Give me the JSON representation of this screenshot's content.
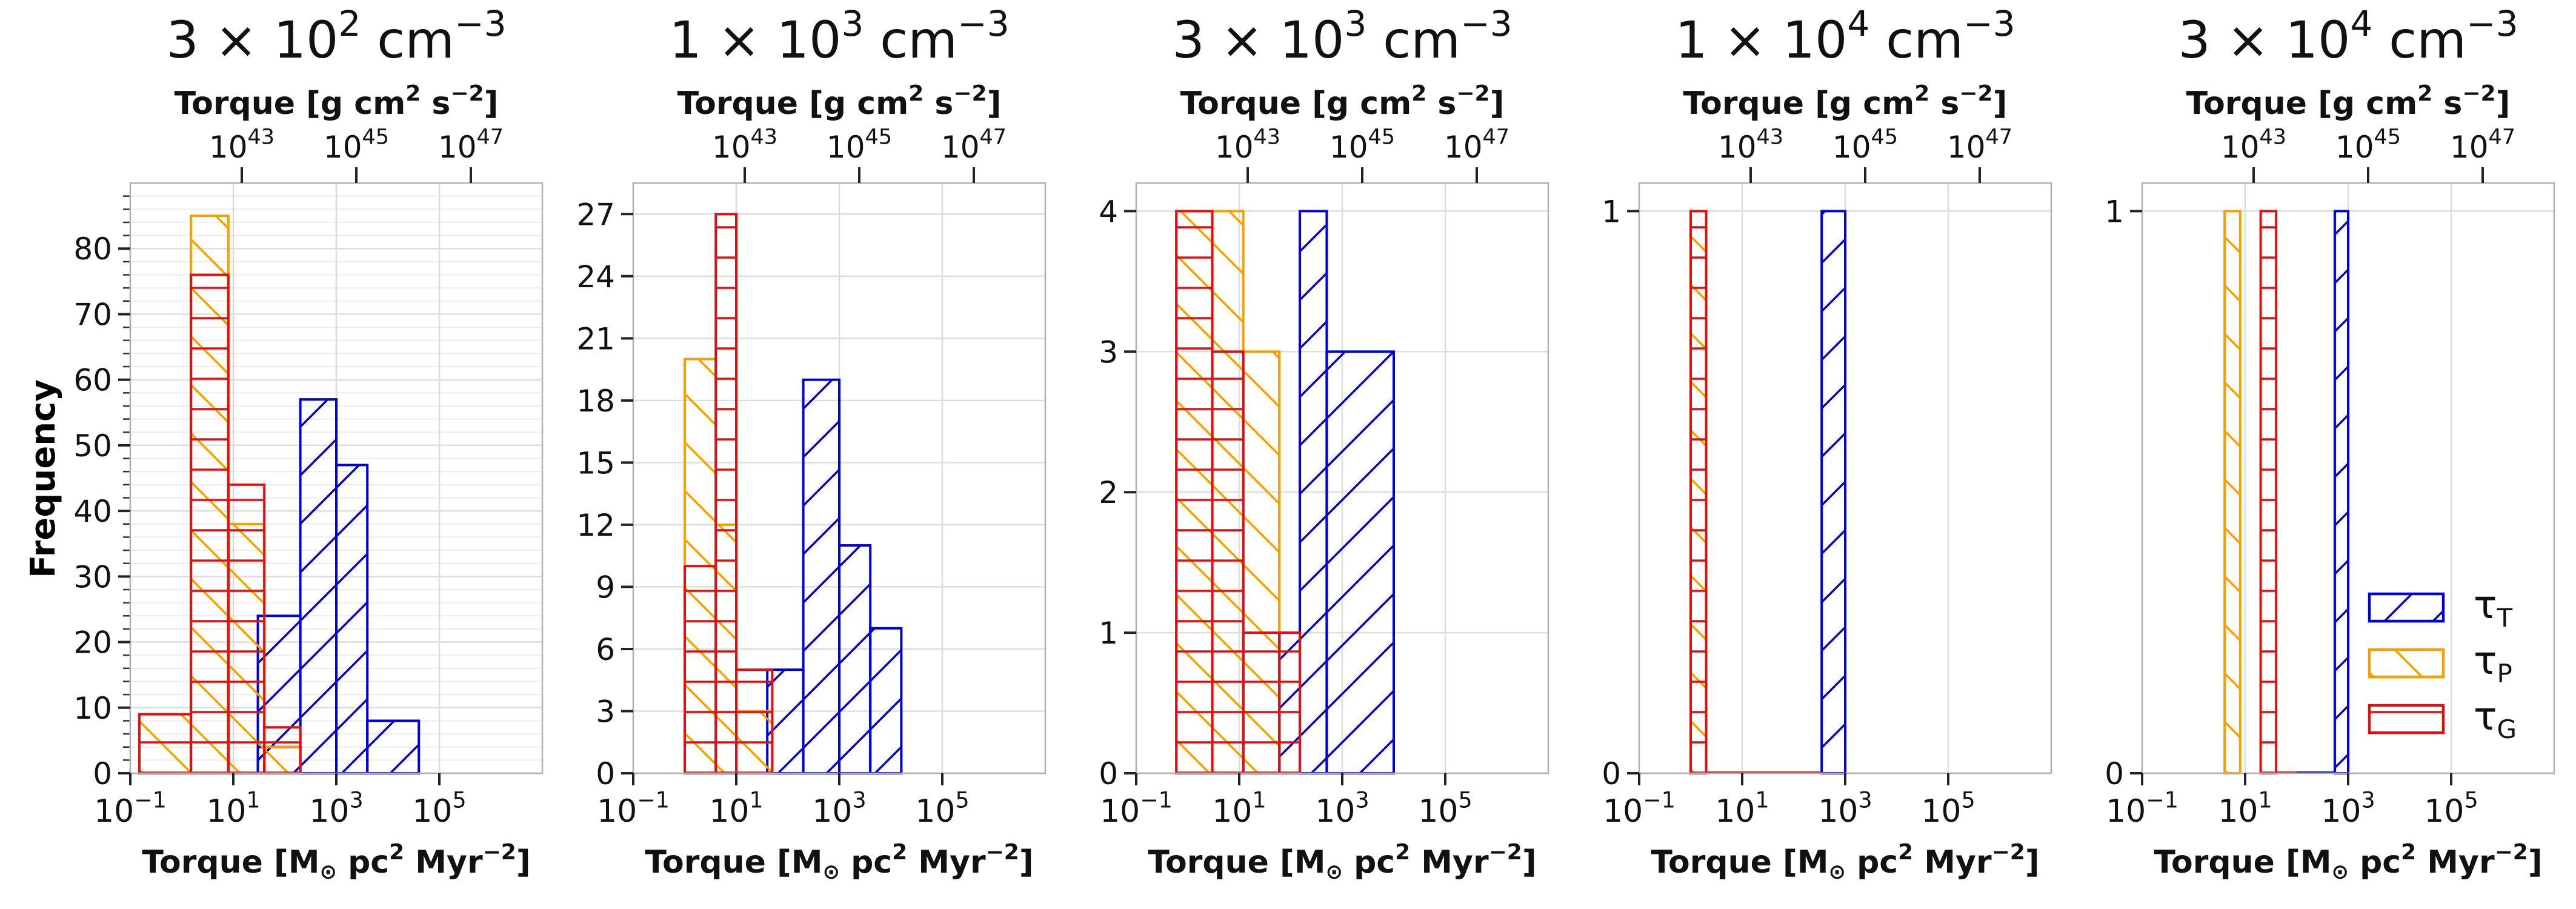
{
  "legend": {
    "position": "lower-right of last panel",
    "entries": [
      {
        "key": "T",
        "label": "τ",
        "sub": "T",
        "color": "#0000dd",
        "hatch": "diag-up"
      },
      {
        "key": "P",
        "label": "τ",
        "sub": "P",
        "color": "#f5a000",
        "hatch": "diag-down"
      },
      {
        "key": "G",
        "label": "τ",
        "sub": "G",
        "color": "#dd1111",
        "hatch": "horizontal"
      }
    ]
  },
  "y_axis_label": "Frequency",
  "chart_data": [
    {
      "type": "bar",
      "title": {
        "mant": "3",
        "exp": "2",
        "unit": "cm",
        "unit_exp": "−3"
      },
      "xlabel": {
        "pre": "Torque [M",
        "mid": " pc",
        "exp1": "2",
        "post": " Myr",
        "exp2": "−2",
        "end": "]"
      },
      "top_xlabel": {
        "pre": "Torque [g cm",
        "exp1": "2",
        "mid": " s",
        "exp2": "−2",
        "end": "]"
      },
      "xscale": "log",
      "xlim": [
        0.1,
        10000000
      ],
      "xticks": [
        "10^-1",
        "10^1",
        "10^3",
        "10^5"
      ],
      "top_xticks": [
        "10^43",
        "10^45",
        "10^47"
      ],
      "ylim": [
        0,
        90
      ],
      "yticks": [
        0,
        10,
        20,
        30,
        40,
        50,
        60,
        70,
        80
      ],
      "minor_y": true,
      "series": [
        {
          "name": "τ_T",
          "color": "#0000dd",
          "hatch": "diag-up",
          "bins": [
            [
              30,
              200,
              4
            ],
            [
              30,
              200,
              24
            ],
            [
              200,
              1000,
              57
            ],
            [
              1000,
              4000,
              47
            ],
            [
              4000,
              40000,
              8
            ]
          ]
        },
        {
          "name": "τ_P",
          "color": "#f5a000",
          "hatch": "diag-down",
          "bins": [
            [
              0.15,
              1.5,
              9
            ],
            [
              1.5,
              8,
              85
            ],
            [
              8,
              40,
              38
            ],
            [
              40,
              200,
              4
            ]
          ]
        },
        {
          "name": "τ_G",
          "color": "#dd1111",
          "hatch": "horizontal",
          "bins": [
            [
              0.15,
              1.5,
              9
            ],
            [
              1.5,
              8,
              76
            ],
            [
              8,
              40,
              44
            ],
            [
              40,
              200,
              7
            ]
          ]
        }
      ]
    },
    {
      "type": "bar",
      "title": {
        "mant": "1",
        "exp": "3",
        "unit": "cm",
        "unit_exp": "−3"
      },
      "xlabel": {
        "pre": "Torque [M",
        "mid": " pc",
        "exp1": "2",
        "post": " Myr",
        "exp2": "−2",
        "end": "]"
      },
      "top_xlabel": {
        "pre": "Torque [g cm",
        "exp1": "2",
        "mid": " s",
        "exp2": "−2",
        "end": "]"
      },
      "xscale": "log",
      "xlim": [
        0.1,
        10000000
      ],
      "xticks": [
        "10^-1",
        "10^1",
        "10^3",
        "10^5"
      ],
      "top_xticks": [
        "10^43",
        "10^45",
        "10^47"
      ],
      "ylim": [
        0,
        28.5
      ],
      "yticks": [
        0,
        3,
        6,
        9,
        12,
        15,
        18,
        21,
        24,
        27
      ],
      "minor_y": false,
      "series": [
        {
          "name": "τ_T",
          "color": "#0000dd",
          "hatch": "diag-up",
          "bins": [
            [
              40,
              200,
              5
            ],
            [
              200,
              1000,
              19
            ],
            [
              1000,
              4000,
              11
            ],
            [
              4000,
              16000,
              7
            ]
          ]
        },
        {
          "name": "τ_P",
          "color": "#f5a000",
          "hatch": "diag-down",
          "bins": [
            [
              1,
              4,
              20
            ],
            [
              4,
              10,
              12
            ],
            [
              10,
              50,
              3
            ]
          ]
        },
        {
          "name": "τ_G",
          "color": "#dd1111",
          "hatch": "horizontal",
          "bins": [
            [
              1,
              4,
              10
            ],
            [
              4,
              10,
              27
            ],
            [
              10,
              50,
              5
            ]
          ]
        }
      ]
    },
    {
      "type": "bar",
      "title": {
        "mant": "3",
        "exp": "3",
        "unit": "cm",
        "unit_exp": "−3"
      },
      "xlabel": {
        "pre": "Torque [M",
        "mid": " pc",
        "exp1": "2",
        "post": " Myr",
        "exp2": "−2",
        "end": "]"
      },
      "top_xlabel": {
        "pre": "Torque [g cm",
        "exp1": "2",
        "mid": " s",
        "exp2": "−2",
        "end": "]"
      },
      "xscale": "log",
      "xlim": [
        0.1,
        10000000
      ],
      "xticks": [
        "10^-1",
        "10^1",
        "10^3",
        "10^5"
      ],
      "top_xticks": [
        "10^43",
        "10^45",
        "10^47"
      ],
      "ylim": [
        0,
        4.2
      ],
      "yticks": [
        0,
        1,
        2,
        3,
        4
      ],
      "minor_y": false,
      "series": [
        {
          "name": "τ_T",
          "color": "#0000dd",
          "hatch": "diag-up",
          "bins": [
            [
              60,
              150,
              1
            ],
            [
              150,
              500,
              4
            ],
            [
              500,
              10000,
              3
            ]
          ]
        },
        {
          "name": "τ_P",
          "color": "#f5a000",
          "hatch": "diag-down",
          "bins": [
            [
              0.6,
              3,
              4
            ],
            [
              3,
              12,
              4
            ],
            [
              12,
              60,
              3
            ]
          ]
        },
        {
          "name": "τ_G",
          "color": "#dd1111",
          "hatch": "horizontal",
          "bins": [
            [
              0.6,
              3,
              4
            ],
            [
              3,
              12,
              3
            ],
            [
              12,
              60,
              1
            ],
            [
              60,
              150,
              1
            ]
          ]
        }
      ]
    },
    {
      "type": "bar",
      "title": {
        "mant": "1",
        "exp": "4",
        "unit": "cm",
        "unit_exp": "−3"
      },
      "xlabel": {
        "pre": "Torque [M",
        "mid": " pc",
        "exp1": "2",
        "post": " Myr",
        "exp2": "−2",
        "end": "]"
      },
      "top_xlabel": {
        "pre": "Torque [g cm",
        "exp1": "2",
        "mid": " s",
        "exp2": "−2",
        "end": "]"
      },
      "xscale": "log",
      "xlim": [
        0.1,
        10000000
      ],
      "xticks": [
        "10^-1",
        "10^1",
        "10^3",
        "10^5"
      ],
      "top_xticks": [
        "10^43",
        "10^45",
        "10^47"
      ],
      "ylim": [
        0,
        1.05
      ],
      "yticks": [
        0,
        1
      ],
      "minor_y": false,
      "series": [
        {
          "name": "τ_T",
          "color": "#0000dd",
          "hatch": "diag-up",
          "bins": [
            [
              2,
              350,
              0
            ],
            [
              350,
              1000,
              1
            ]
          ]
        },
        {
          "name": "τ_P",
          "color": "#f5a000",
          "hatch": "diag-down",
          "bins": [
            [
              1,
              2,
              1
            ]
          ]
        },
        {
          "name": "τ_G",
          "color": "#dd1111",
          "hatch": "horizontal",
          "bins": [
            [
              1,
              2,
              1
            ],
            [
              2,
              350,
              0
            ]
          ]
        }
      ]
    },
    {
      "type": "bar",
      "title": {
        "mant": "3",
        "exp": "4",
        "unit": "cm",
        "unit_exp": "−3"
      },
      "xlabel": {
        "pre": "Torque [M",
        "mid": " pc",
        "exp1": "2",
        "post": " Myr",
        "exp2": "−2",
        "end": "]"
      },
      "top_xlabel": {
        "pre": "Torque [g cm",
        "exp1": "2",
        "mid": " s",
        "exp2": "−2",
        "end": "]"
      },
      "xscale": "log",
      "xlim": [
        0.1,
        10000000
      ],
      "xticks": [
        "10^-1",
        "10^1",
        "10^3",
        "10^5"
      ],
      "top_xticks": [
        "10^43",
        "10^45",
        "10^47"
      ],
      "ylim": [
        0,
        1.05
      ],
      "yticks": [
        0,
        1
      ],
      "minor_y": false,
      "series": [
        {
          "name": "τ_T",
          "color": "#0000dd",
          "hatch": "diag-up",
          "bins": [
            [
              100,
              550,
              0
            ],
            [
              550,
              1000,
              1
            ]
          ]
        },
        {
          "name": "τ_P",
          "color": "#f5a000",
          "hatch": "diag-down",
          "bins": [
            [
              4,
              8,
              1
            ]
          ]
        },
        {
          "name": "τ_G",
          "color": "#dd1111",
          "hatch": "horizontal",
          "bins": [
            [
              20,
              40,
              1
            ],
            [
              40,
              100,
              0
            ]
          ]
        }
      ]
    }
  ]
}
